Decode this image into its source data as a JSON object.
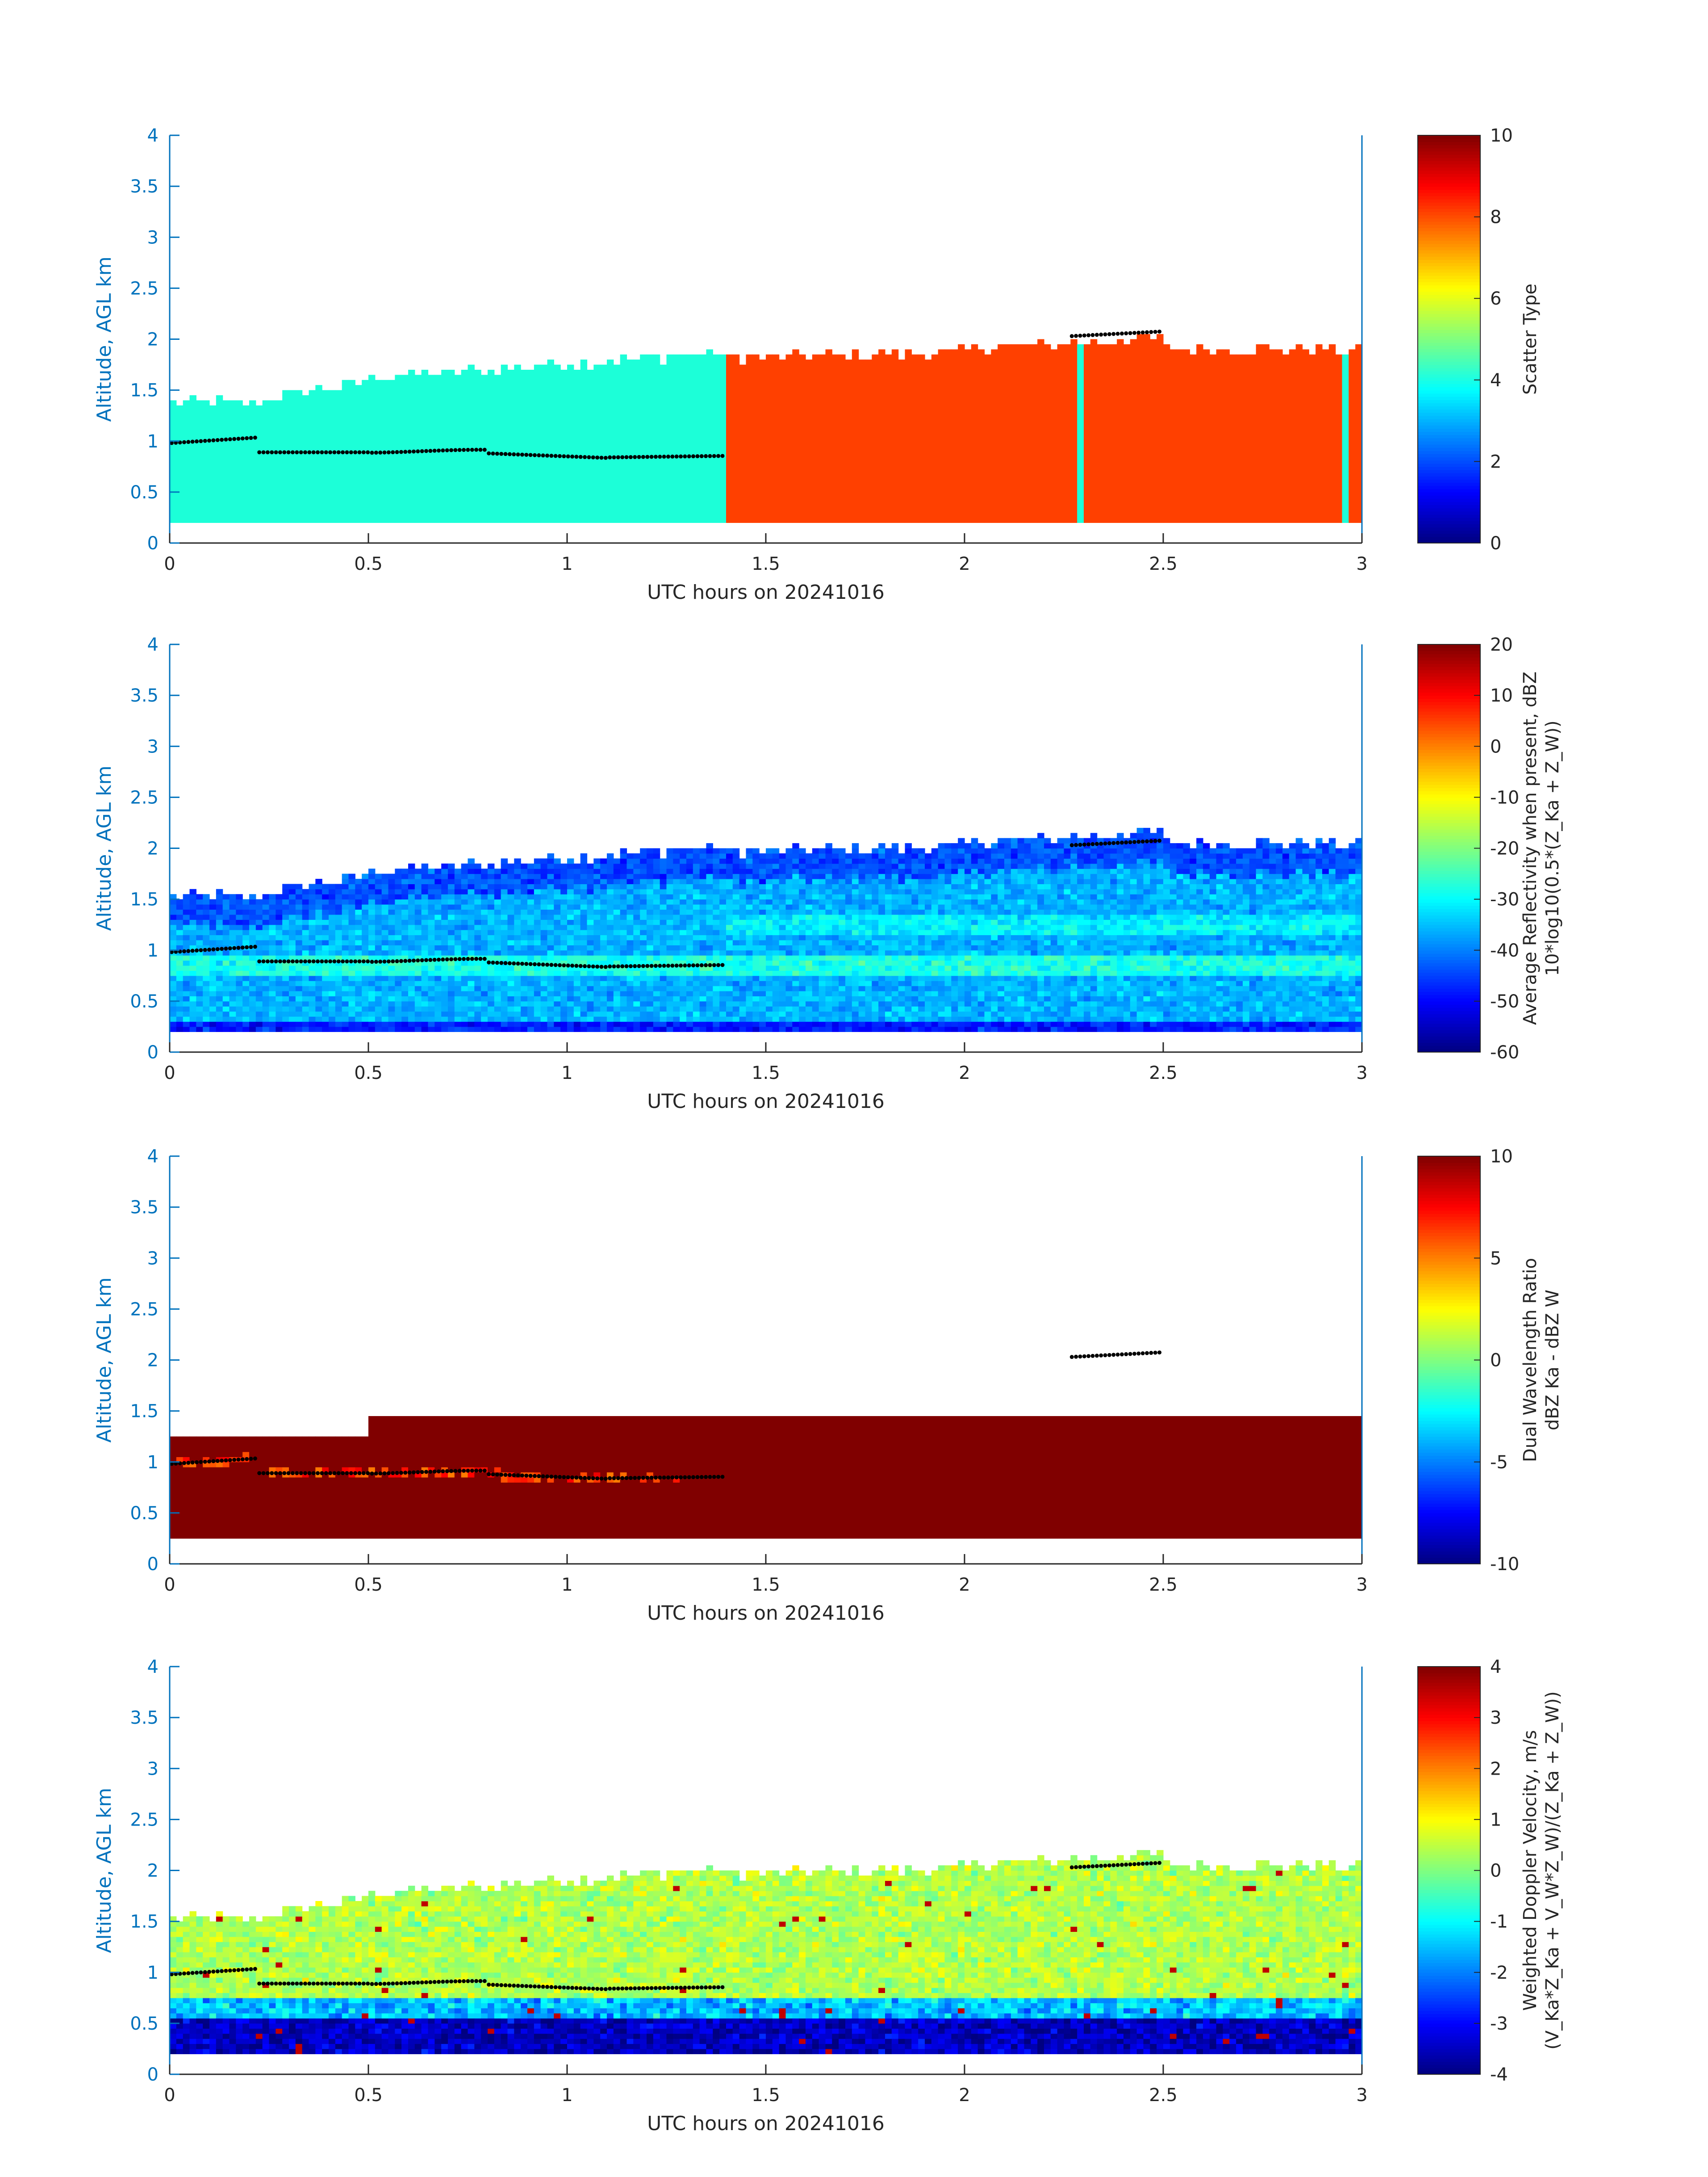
{
  "chart_data": [
    {
      "type": "heatmap",
      "xlabel": "UTC hours on 20241016",
      "ylabel": "Altitude, AGL km",
      "xlim": [
        0,
        3
      ],
      "ylim": [
        0,
        4
      ],
      "xticks": [
        "0",
        "0.5",
        "1",
        "1.5",
        "2",
        "2.5",
        "3"
      ],
      "yticks": [
        "0",
        "0.5",
        "1",
        "1.5",
        "2",
        "2.5",
        "3",
        "3.5",
        "4"
      ],
      "colorbar": {
        "label_lines": [
          "Scatter Type"
        ],
        "min": 0,
        "max": 10,
        "ticks": [
          "0",
          "2",
          "4",
          "6",
          "8",
          "10"
        ],
        "colormap": "jet"
      },
      "field": "scatter",
      "overlay": "cloud base points"
    },
    {
      "type": "heatmap",
      "xlabel": "UTC hours on 20241016",
      "ylabel": "Altitude, AGL km",
      "xlim": [
        0,
        3
      ],
      "ylim": [
        0,
        4
      ],
      "xticks": [
        "0",
        "0.5",
        "1",
        "1.5",
        "2",
        "2.5",
        "3"
      ],
      "yticks": [
        "0",
        "0.5",
        "1",
        "1.5",
        "2",
        "2.5",
        "3",
        "3.5",
        "4"
      ],
      "colorbar": {
        "label_lines": [
          "Average Reflectivity when present, dBZ",
          "10*log10(0.5*(Z_Ka + Z_W))"
        ],
        "min": -60,
        "max": 20,
        "ticks": [
          "-60",
          "-50",
          "-40",
          "-30",
          "-20",
          "-10",
          "0",
          "10",
          "20"
        ],
        "colormap": "jet"
      },
      "field": "reflectivity",
      "overlay": "cloud base points"
    },
    {
      "type": "heatmap",
      "xlabel": "UTC hours on 20241016",
      "ylabel": "Altitude, AGL km",
      "xlim": [
        0,
        3
      ],
      "ylim": [
        0,
        4
      ],
      "xticks": [
        "0",
        "0.5",
        "1",
        "1.5",
        "2",
        "2.5",
        "3"
      ],
      "yticks": [
        "0",
        "0.5",
        "1",
        "1.5",
        "2",
        "2.5",
        "3",
        "3.5",
        "4"
      ],
      "colorbar": {
        "label_lines": [
          "Dual Wavelength Ratio",
          "dBZ Ka - dBZ W"
        ],
        "min": -10,
        "max": 10,
        "ticks": [
          "-10",
          "-5",
          "0",
          "5",
          "10"
        ],
        "colormap": "jet"
      },
      "field": "dwr",
      "overlay": "cloud base points"
    },
    {
      "type": "heatmap",
      "xlabel": "UTC hours on 20241016",
      "ylabel": "Altitude, AGL km",
      "xlim": [
        0,
        3
      ],
      "ylim": [
        0,
        4
      ],
      "xticks": [
        "0",
        "0.5",
        "1",
        "1.5",
        "2",
        "2.5",
        "3"
      ],
      "yticks": [
        "0",
        "0.5",
        "1",
        "1.5",
        "2",
        "2.5",
        "3",
        "3.5",
        "4"
      ],
      "colorbar": {
        "label_lines": [
          "Weighted Doppler Velocity, m/s",
          "(V_Ka*Z_Ka + V_W*Z_W)/(Z_Ka + Z_W))"
        ],
        "min": -4,
        "max": 4,
        "ticks": [
          "-4",
          "-3",
          "-2",
          "-1",
          "0",
          "1",
          "2",
          "3",
          "4"
        ],
        "colormap": "jet"
      },
      "field": "velocity",
      "overlay": "cloud base points"
    }
  ],
  "colors": {
    "axis": "#0072bd",
    "scatter_cloud": "#1cffd8",
    "scatter_precip": "#ff4000",
    "dwr_max": "#800000",
    "points": "#000000"
  }
}
